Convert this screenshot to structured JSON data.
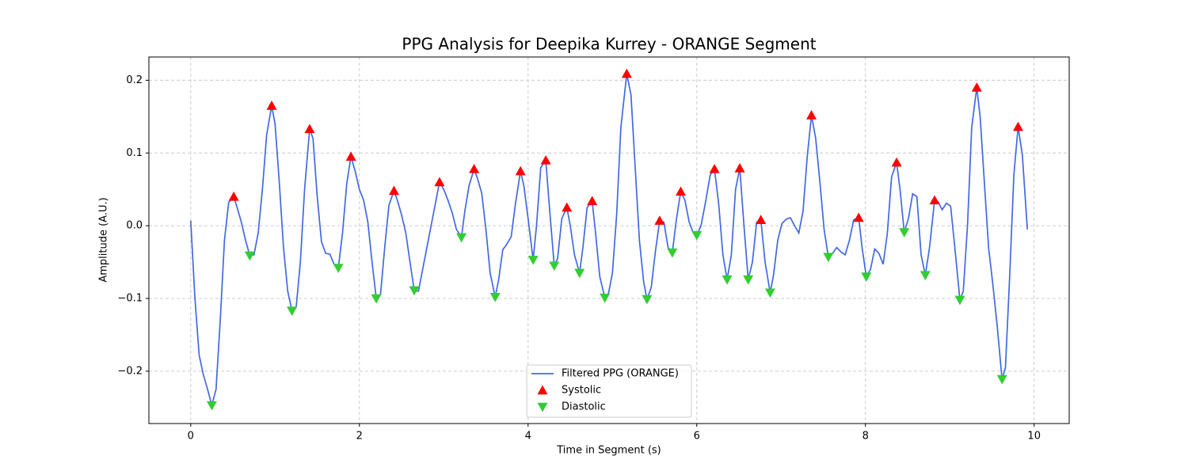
{
  "chart_data": {
    "type": "line",
    "title": "PPG Analysis for Deepika Kurrey - ORANGE Segment",
    "xlabel": "Time in Segment (s)",
    "ylabel": "Amplitude (A.U.)",
    "xlim": [
      -0.496,
      10.416
    ],
    "ylim": [
      -0.272,
      0.232
    ],
    "xticks": [
      0,
      2,
      4,
      6,
      8,
      10
    ],
    "yticks": [
      {
        "value": -0.2,
        "label": "−0.2"
      },
      {
        "value": -0.1,
        "label": "−0.1"
      },
      {
        "value": 0,
        "label": "0.0"
      },
      0.1,
      0.2
    ],
    "grid": true,
    "legend": "lower center",
    "series": [
      {
        "name": "Filtered PPG (ORANGE)",
        "type": "line",
        "color": "#4169e1",
        "x": [
          0,
          0.05,
          0.1,
          0.15,
          0.2,
          0.25,
          0.3,
          0.35,
          0.4,
          0.45,
          0.51,
          0.55,
          0.6,
          0.65,
          0.7,
          0.75,
          0.8,
          0.85,
          0.9,
          0.96,
          1.0,
          1.05,
          1.1,
          1.15,
          1.2,
          1.25,
          1.3,
          1.35,
          1.41,
          1.45,
          1.5,
          1.55,
          1.6,
          1.65,
          1.7,
          1.75,
          1.8,
          1.85,
          1.9,
          1.95,
          2.0,
          2.05,
          2.1,
          2.15,
          2.2,
          2.25,
          2.3,
          2.35,
          2.41,
          2.45,
          2.5,
          2.55,
          2.6,
          2.65,
          2.7,
          2.75,
          2.8,
          2.85,
          2.9,
          2.95,
          3.0,
          3.05,
          3.1,
          3.15,
          3.21,
          3.25,
          3.3,
          3.36,
          3.4,
          3.45,
          3.5,
          3.55,
          3.61,
          3.65,
          3.7,
          3.75,
          3.8,
          3.85,
          3.91,
          3.95,
          4.0,
          4.06,
          4.1,
          4.15,
          4.21,
          4.25,
          4.31,
          4.35,
          4.4,
          4.46,
          4.5,
          4.55,
          4.61,
          4.65,
          4.7,
          4.76,
          4.8,
          4.85,
          4.91,
          4.95,
          5.0,
          5.05,
          5.1,
          5.17,
          5.22,
          5.27,
          5.32,
          5.37,
          5.41,
          5.46,
          5.51,
          5.56,
          5.61,
          5.66,
          5.71,
          5.76,
          5.81,
          5.86,
          5.91,
          5.96,
          6.0,
          6.05,
          6.1,
          6.16,
          6.21,
          6.26,
          6.31,
          6.36,
          6.41,
          6.46,
          6.51,
          6.56,
          6.61,
          6.66,
          6.71,
          6.76,
          6.81,
          6.87,
          6.91,
          6.96,
          7.01,
          7.06,
          7.11,
          7.16,
          7.21,
          7.26,
          7.31,
          7.36,
          7.41,
          7.46,
          7.51,
          7.56,
          7.61,
          7.66,
          7.71,
          7.76,
          7.81,
          7.86,
          7.92,
          7.96,
          8.01,
          8.06,
          8.11,
          8.16,
          8.21,
          8.26,
          8.31,
          8.37,
          8.41,
          8.46,
          8.51,
          8.56,
          8.61,
          8.66,
          8.71,
          8.76,
          8.82,
          8.86,
          8.91,
          8.96,
          9.01,
          9.06,
          9.12,
          9.16,
          9.21,
          9.26,
          9.32,
          9.36,
          9.41,
          9.46,
          9.51,
          9.56,
          9.62,
          9.66,
          9.71,
          9.76,
          9.81,
          9.86,
          9.92
        ],
        "values": [
          0.007,
          -0.1,
          -0.178,
          -0.205,
          -0.225,
          -0.247,
          -0.225,
          -0.13,
          -0.02,
          0.032,
          0.04,
          0.025,
          0.005,
          -0.02,
          -0.041,
          -0.04,
          -0.01,
          0.05,
          0.125,
          0.165,
          0.14,
          0.06,
          -0.03,
          -0.09,
          -0.117,
          -0.112,
          -0.05,
          0.05,
          0.133,
          0.12,
          0.04,
          -0.022,
          -0.038,
          -0.039,
          -0.053,
          -0.058,
          -0.01,
          0.058,
          0.095,
          0.075,
          0.05,
          0.035,
          0.005,
          -0.05,
          -0.1,
          -0.095,
          -0.03,
          0.028,
          0.048,
          0.035,
          0.015,
          -0.01,
          -0.05,
          -0.089,
          -0.09,
          -0.06,
          -0.03,
          0,
          0.03,
          0.06,
          0.05,
          0.035,
          0.018,
          -0.005,
          -0.016,
          0.02,
          0.055,
          0.078,
          0.065,
          0.045,
          -0.005,
          -0.065,
          -0.098,
          -0.075,
          -0.033,
          -0.025,
          -0.015,
          0.03,
          0.075,
          0.055,
          0.01,
          -0.047,
          0,
          0.08,
          0.09,
          0.03,
          -0.055,
          -0.045,
          0.01,
          0.025,
          0,
          -0.04,
          -0.065,
          -0.03,
          0.025,
          0.034,
          -0.01,
          -0.07,
          -0.099,
          -0.095,
          -0.065,
          0.015,
          0.135,
          0.209,
          0.18,
          0.08,
          -0.02,
          -0.077,
          -0.101,
          -0.085,
          -0.035,
          0.007,
          0.005,
          -0.03,
          -0.037,
          0.01,
          0.047,
          0.035,
          0.005,
          -0.01,
          -0.013,
          0,
          0.03,
          0.07,
          0.078,
          0.03,
          -0.04,
          -0.074,
          -0.04,
          0.05,
          0.079,
          0,
          -0.074,
          -0.05,
          0.005,
          0.008,
          -0.05,
          -0.092,
          -0.068,
          -0.02,
          0.003,
          0.009,
          0.011,
          0,
          -0.01,
          0.02,
          0.095,
          0.152,
          0.12,
          0.06,
          -0.005,
          -0.043,
          -0.038,
          -0.03,
          -0.036,
          -0.04,
          -0.02,
          0.008,
          0.011,
          -0.03,
          -0.07,
          -0.06,
          -0.032,
          -0.038,
          -0.053,
          -0.01,
          0.067,
          0.087,
          0.05,
          -0.009,
          0.01,
          0.044,
          0.04,
          -0.04,
          -0.068,
          -0.03,
          0.035,
          0.033,
          0.022,
          0.031,
          0.027,
          -0.03,
          -0.102,
          -0.09,
          0,
          0.135,
          0.19,
          0.15,
          0.06,
          -0.03,
          -0.08,
          -0.135,
          -0.211,
          -0.195,
          -0.07,
          0.07,
          0.136,
          0.098,
          -0.005
        ]
      },
      {
        "name": "Systolic",
        "type": "scatter",
        "marker": "triangle-up",
        "color": "#ff0000",
        "x": [
          0.51,
          0.96,
          1.41,
          1.9,
          2.41,
          2.95,
          3.36,
          3.91,
          4.21,
          4.46,
          4.76,
          5.17,
          5.56,
          5.81,
          6.21,
          6.51,
          6.76,
          7.36,
          7.92,
          8.37,
          8.82,
          9.32,
          9.81
        ],
        "values": [
          0.04,
          0.165,
          0.133,
          0.095,
          0.048,
          0.06,
          0.078,
          0.075,
          0.09,
          0.025,
          0.034,
          0.209,
          0.007,
          0.047,
          0.078,
          0.079,
          0.008,
          0.152,
          0.011,
          0.087,
          0.035,
          0.19,
          0.136
        ]
      },
      {
        "name": "Diastolic",
        "type": "scatter",
        "marker": "triangle-down",
        "color": "#32cd32",
        "x": [
          0.25,
          0.7,
          1.2,
          1.75,
          2.2,
          2.65,
          3.21,
          3.61,
          4.06,
          4.31,
          4.61,
          4.91,
          5.41,
          5.71,
          6.0,
          6.36,
          6.61,
          6.87,
          7.56,
          8.01,
          8.46,
          8.71,
          9.12,
          9.62
        ],
        "values": [
          -0.247,
          -0.041,
          -0.117,
          -0.058,
          -0.1,
          -0.089,
          -0.016,
          -0.098,
          -0.047,
          -0.055,
          -0.065,
          -0.099,
          -0.101,
          -0.037,
          -0.013,
          -0.074,
          -0.074,
          -0.092,
          -0.043,
          -0.07,
          -0.009,
          -0.068,
          -0.102,
          -0.211
        ]
      }
    ]
  }
}
